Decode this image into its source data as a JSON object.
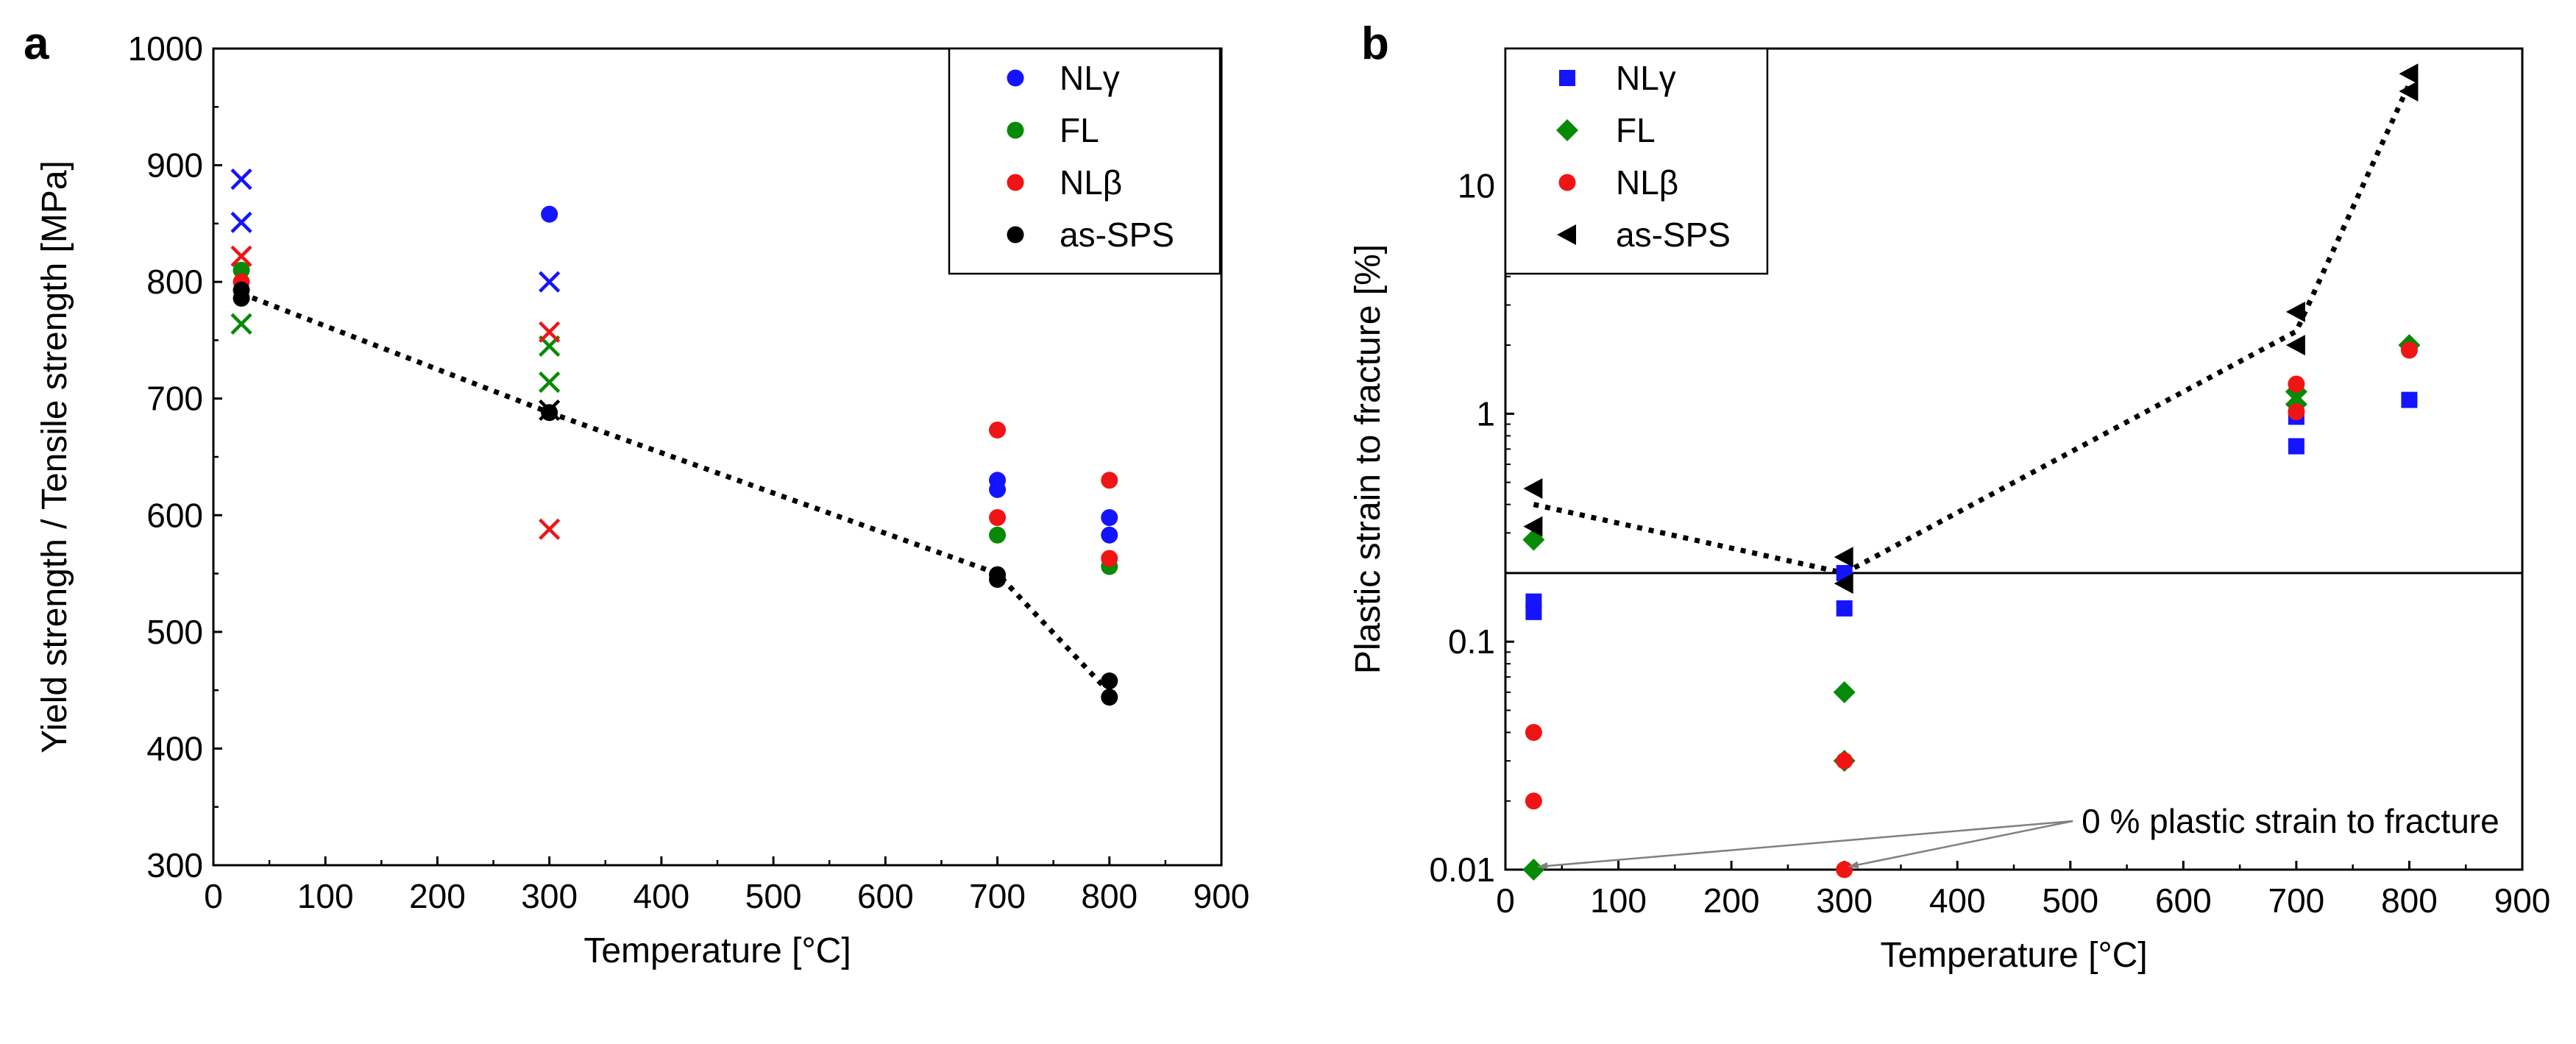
{
  "colors": {
    "NLgamma": "#1414ff",
    "FL": "#078a07",
    "NLbeta": "#f01414",
    "asSPS": "#000000",
    "axis": "#000000",
    "arrow": "#808080"
  },
  "chart_data": [
    {
      "panel": "a",
      "type": "scatter",
      "xlabel": "Temperature [°C]",
      "ylabel": "Yield strength / Tensile strength  [MPa]",
      "xlim": [
        0,
        900
      ],
      "ylim": [
        300,
        1000
      ],
      "xticks": [
        0,
        100,
        200,
        300,
        400,
        500,
        600,
        700,
        800,
        900
      ],
      "yticks": [
        300,
        400,
        500,
        600,
        700,
        800,
        900,
        1000
      ],
      "legend": {
        "position": "top-right",
        "entries": [
          "NLγ",
          "FL",
          "NLβ",
          "as-SPS"
        ]
      },
      "series": [
        {
          "name": "NLγ",
          "color_key": "NLgamma",
          "marker": "circle",
          "points": [
            [
              300,
              858
            ],
            [
              700,
              630
            ],
            [
              700,
              622
            ],
            [
              800,
              598
            ],
            [
              800,
              583
            ]
          ]
        },
        {
          "name": "FL",
          "color_key": "FL",
          "marker": "circle",
          "points": [
            [
              25,
              810
            ],
            [
              700,
              583
            ],
            [
              800,
              556
            ]
          ]
        },
        {
          "name": "NLβ",
          "color_key": "NLbeta",
          "marker": "circle",
          "points": [
            [
              25,
              800
            ],
            [
              700,
              673
            ],
            [
              700,
              598
            ],
            [
              800,
              630
            ],
            [
              800,
              563
            ]
          ]
        },
        {
          "name": "as-SPS",
          "color_key": "asSPS",
          "marker": "circle",
          "points": [
            [
              25,
              793
            ],
            [
              25,
              786
            ],
            [
              300,
              688
            ],
            [
              700,
              549
            ],
            [
              700,
              545
            ],
            [
              800,
              458
            ],
            [
              800,
              444
            ]
          ]
        },
        {
          "name": "NLγ tensile",
          "color_key": "NLgamma",
          "marker": "x",
          "points": [
            [
              25,
              888
            ],
            [
              25,
              851
            ],
            [
              300,
              800
            ]
          ]
        },
        {
          "name": "FL tensile",
          "color_key": "FL",
          "marker": "x",
          "points": [
            [
              25,
              764
            ],
            [
              300,
              745
            ],
            [
              300,
              714
            ]
          ]
        },
        {
          "name": "NLβ tensile",
          "color_key": "NLbeta",
          "marker": "x",
          "points": [
            [
              25,
              822
            ],
            [
              300,
              757
            ],
            [
              300,
              588
            ]
          ]
        },
        {
          "name": "as-SPS tensile",
          "color_key": "asSPS",
          "marker": "x",
          "points": [
            [
              300,
              690
            ]
          ]
        }
      ],
      "trend_line": {
        "style": "dotted",
        "points": [
          [
            25,
            790
          ],
          [
            300,
            688
          ],
          [
            700,
            550
          ],
          [
            800,
            448
          ]
        ]
      }
    },
    {
      "panel": "b",
      "type": "scatter",
      "xlabel": "Temperature [°C]",
      "ylabel": "Plastic strain to fracture [%]",
      "yscale": "log",
      "xlim": [
        0,
        900
      ],
      "ylim": [
        0.01,
        40
      ],
      "xticks": [
        0,
        100,
        200,
        300,
        400,
        500,
        600,
        700,
        800,
        900
      ],
      "yticks": [
        0.01,
        0.1,
        1,
        10
      ],
      "ytick_labels": [
        "0.01",
        "0.1",
        "1",
        "10"
      ],
      "hline": 0.2,
      "legend": {
        "position": "top-left",
        "entries": [
          "NLγ",
          "FL",
          "NLβ",
          "as-SPS"
        ]
      },
      "series": [
        {
          "name": "NLγ",
          "color_key": "NLgamma",
          "marker": "square",
          "points": [
            [
              25,
              0.15
            ],
            [
              25,
              0.135
            ],
            [
              300,
              0.2
            ],
            [
              300,
              0.14
            ],
            [
              700,
              0.97
            ],
            [
              700,
              0.72
            ],
            [
              800,
              1.15
            ]
          ]
        },
        {
          "name": "FL",
          "color_key": "FL",
          "marker": "diamond",
          "points": [
            [
              25,
              0.28
            ],
            [
              25,
              0.01
            ],
            [
              300,
              0.06
            ],
            [
              300,
              0.03
            ],
            [
              700,
              1.25
            ],
            [
              700,
              1.1
            ],
            [
              800,
              2.0
            ]
          ]
        },
        {
          "name": "NLβ",
          "color_key": "NLbeta",
          "marker": "circle",
          "points": [
            [
              25,
              0.04
            ],
            [
              25,
              0.02
            ],
            [
              300,
              0.03
            ],
            [
              300,
              0.01
            ],
            [
              700,
              1.35
            ],
            [
              700,
              1.02
            ],
            [
              800,
              1.9
            ]
          ]
        },
        {
          "name": "as-SPS",
          "color_key": "asSPS",
          "marker": "triangle-left",
          "points": [
            [
              25,
              0.47
            ],
            [
              25,
              0.32
            ],
            [
              300,
              0.235
            ],
            [
              300,
              0.18
            ],
            [
              700,
              2.8
            ],
            [
              700,
              2.0
            ],
            [
              800,
              31
            ],
            [
              800,
              26
            ]
          ]
        }
      ],
      "trend_line": {
        "style": "dotted",
        "points": [
          [
            25,
            0.4
          ],
          [
            300,
            0.2
          ],
          [
            700,
            2.3
          ],
          [
            800,
            28
          ]
        ]
      },
      "annotation": {
        "text": "0 % plastic strain to fracture",
        "text_at": [
          510,
          0.0145
        ],
        "arrow_targets": [
          [
            25,
            0.01
          ],
          [
            300,
            0.01
          ]
        ]
      }
    }
  ]
}
